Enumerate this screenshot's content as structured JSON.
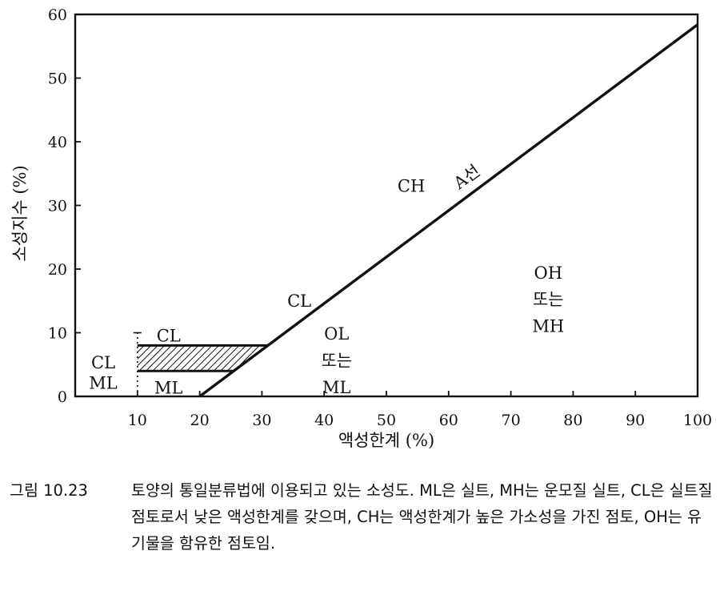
{
  "chart_data": {
    "type": "line",
    "title": "",
    "xlabel": "액성한계 (%)",
    "ylabel": "소성지수 (%)",
    "xlim": [
      0,
      100
    ],
    "ylim": [
      0,
      60
    ],
    "x_ticks": [
      10,
      20,
      30,
      40,
      50,
      60,
      70,
      80,
      90,
      100
    ],
    "y_ticks": [
      0,
      10,
      20,
      30,
      40,
      50,
      60
    ],
    "grid": false,
    "series": [
      {
        "name": "A선",
        "x": [
          20,
          100
        ],
        "y": [
          0,
          58.4
        ]
      }
    ],
    "hatched_zone": {
      "x_start": 10,
      "y_lower": 4,
      "y_upper": 8
    },
    "dotted_line": {
      "x": 10,
      "y": [
        0,
        10
      ]
    },
    "regions": [
      {
        "id": "ch",
        "lines": [
          "CH"
        ],
        "x": 54,
        "y": 33
      },
      {
        "id": "cl-upper",
        "lines": [
          "CL"
        ],
        "x": 36,
        "y": 15
      },
      {
        "id": "cl-zone",
        "lines": [
          "CL"
        ],
        "x": 15,
        "y": 9.5
      },
      {
        "id": "ml-zone",
        "lines": [
          "ML"
        ],
        "x": 15,
        "y": 1.3
      },
      {
        "id": "cl-ml-left",
        "lines": [
          "CL",
          "ML"
        ],
        "x": 4.5,
        "y": 5.3,
        "dy": 3.2
      },
      {
        "id": "ol-ml",
        "lines": [
          "OL",
          "또는",
          "ML"
        ],
        "x": 42,
        "y": 9.8,
        "dy": 4.2
      },
      {
        "id": "oh-mh",
        "lines": [
          "OH",
          "또는",
          "MH"
        ],
        "x": 76,
        "y": 19.4,
        "dy": 4.2
      }
    ]
  },
  "caption": {
    "number": "그림 10.23",
    "text": "토양의 통일분류법에 이용되고 있는 소성도. ML은 실트, MH는 운모질 실트, CL은 실트질 점토로서 낮은 액성한계를 갖으며, CH는 액성한계가 높은 가소성을 가진 점토, OH는 유기물을 함유한 점토임."
  }
}
